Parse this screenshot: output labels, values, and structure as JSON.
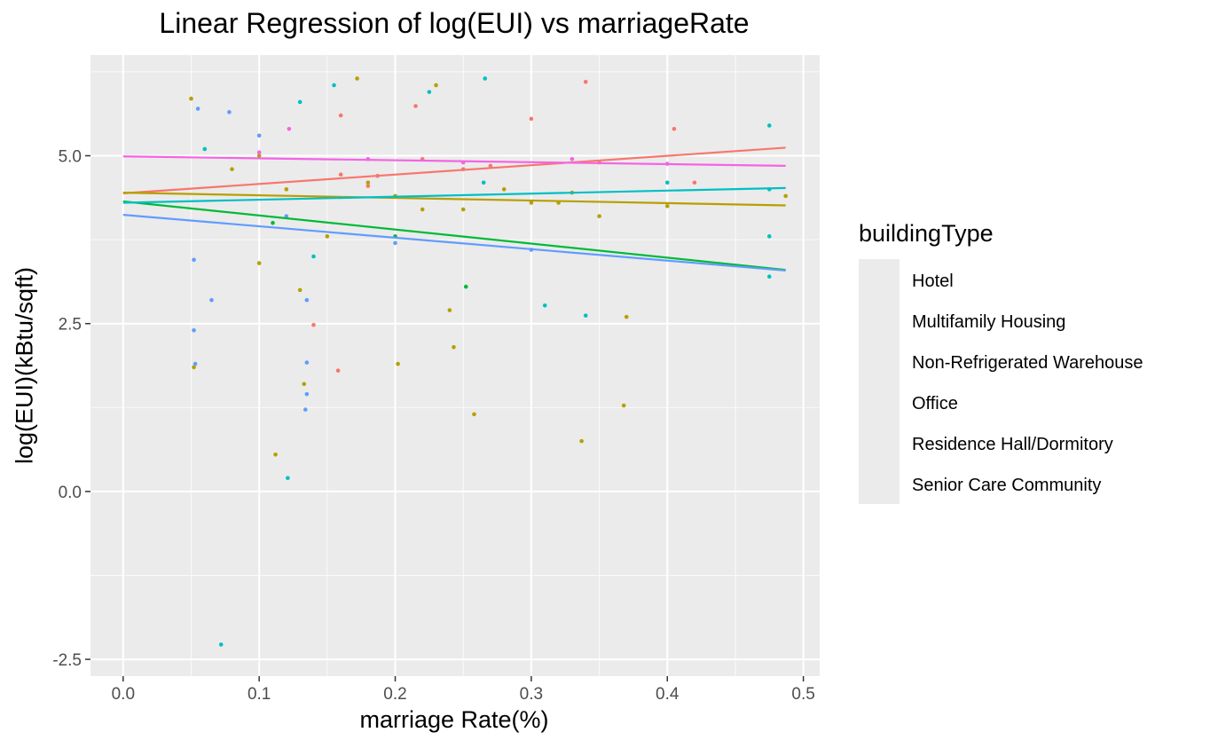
{
  "chart_data": {
    "type": "scatter",
    "title": "Linear Regression of log(EUI) vs marriageRate",
    "xlabel": "marriage Rate(%)",
    "ylabel": "log(EUI)(kBtu/sqft)",
    "xlim": [
      -0.024,
      0.512
    ],
    "ylim": [
      -2.75,
      6.5
    ],
    "x_ticks": [
      "0.0",
      "0.1",
      "0.2",
      "0.3",
      "0.4",
      "0.5"
    ],
    "y_ticks": [
      "-2.5",
      "0.0",
      "2.5",
      "5.0"
    ],
    "grid": true,
    "legend_title": "buildingType",
    "legend_position": "right",
    "series": [
      {
        "name": "Hotel",
        "color": "#F8766D",
        "fit": [
          [
            0.0,
            4.44
          ],
          [
            0.487,
            5.12
          ]
        ],
        "points": [
          [
            0.16,
            4.72
          ],
          [
            0.18,
            4.55
          ],
          [
            0.215,
            5.74
          ],
          [
            0.34,
            6.1
          ],
          [
            0.3,
            5.55
          ],
          [
            0.25,
            4.8
          ],
          [
            0.158,
            1.8
          ],
          [
            0.14,
            2.48
          ],
          [
            0.42,
            4.6
          ],
          [
            0.405,
            5.4
          ],
          [
            0.16,
            5.6
          ],
          [
            0.22,
            4.95
          ],
          [
            0.27,
            4.85
          ],
          [
            0.35,
            4.9
          ],
          [
            0.187,
            4.7
          ]
        ]
      },
      {
        "name": "Multifamily Housing",
        "color": "#B79F00",
        "fit": [
          [
            0.0,
            4.45
          ],
          [
            0.487,
            4.26
          ]
        ],
        "points": [
          [
            0.05,
            5.85
          ],
          [
            0.172,
            6.15
          ],
          [
            0.23,
            6.05
          ],
          [
            0.112,
            0.55
          ],
          [
            0.337,
            0.75
          ],
          [
            0.258,
            1.15
          ],
          [
            0.368,
            1.28
          ],
          [
            0.133,
            1.6
          ],
          [
            0.202,
            1.9
          ],
          [
            0.052,
            1.85
          ],
          [
            0.243,
            2.15
          ],
          [
            0.1,
            3.4
          ],
          [
            0.15,
            3.8
          ],
          [
            0.25,
            4.2
          ],
          [
            0.3,
            4.3
          ],
          [
            0.35,
            4.1
          ],
          [
            0.4,
            4.25
          ],
          [
            0.487,
            4.4
          ],
          [
            0.08,
            4.8
          ],
          [
            0.12,
            4.5
          ],
          [
            0.18,
            4.6
          ],
          [
            0.2,
            4.4
          ],
          [
            0.28,
            4.5
          ],
          [
            0.33,
            4.45
          ],
          [
            0.13,
            3.0
          ],
          [
            0.24,
            2.7
          ],
          [
            0.37,
            2.6
          ],
          [
            0.1,
            5.0
          ],
          [
            0.22,
            4.2
          ],
          [
            0.32,
            4.3
          ]
        ]
      },
      {
        "name": "Non-Refrigerated Warehouse",
        "color": "#00BA38",
        "fit": [
          [
            0.0,
            4.32
          ],
          [
            0.487,
            3.3
          ]
        ],
        "points": [
          [
            0.252,
            3.05
          ],
          [
            0.11,
            4.0
          ],
          [
            0.2,
            3.8
          ]
        ]
      },
      {
        "name": "Office",
        "color": "#00BFC4",
        "fit": [
          [
            0.0,
            4.3
          ],
          [
            0.487,
            4.52
          ]
        ],
        "points": [
          [
            0.121,
            0.2
          ],
          [
            0.072,
            -2.28
          ],
          [
            0.266,
            6.15
          ],
          [
            0.155,
            6.05
          ],
          [
            0.225,
            5.95
          ],
          [
            0.475,
            5.45
          ],
          [
            0.475,
            4.5
          ],
          [
            0.475,
            3.8
          ],
          [
            0.475,
            3.2
          ],
          [
            0.34,
            2.62
          ],
          [
            0.31,
            2.77
          ],
          [
            0.13,
            5.8
          ],
          [
            0.06,
            5.1
          ],
          [
            0.14,
            3.5
          ],
          [
            0.265,
            4.6
          ],
          [
            0.4,
            4.6
          ]
        ]
      },
      {
        "name": "Residence Hall/Dormitory",
        "color": "#619CFF",
        "fit": [
          [
            0.0,
            4.12
          ],
          [
            0.487,
            3.29
          ]
        ],
        "points": [
          [
            0.134,
            1.22
          ],
          [
            0.135,
            1.45
          ],
          [
            0.135,
            1.92
          ],
          [
            0.052,
            2.4
          ],
          [
            0.052,
            3.45
          ],
          [
            0.065,
            2.85
          ],
          [
            0.053,
            1.9
          ],
          [
            0.055,
            5.7
          ],
          [
            0.078,
            5.65
          ],
          [
            0.1,
            5.3
          ],
          [
            0.135,
            2.85
          ],
          [
            0.2,
            3.7
          ],
          [
            0.3,
            3.6
          ],
          [
            0.12,
            4.1
          ]
        ]
      },
      {
        "name": "Senior Care Community",
        "color": "#F564E3",
        "fit": [
          [
            0.0,
            4.99
          ],
          [
            0.487,
            4.85
          ]
        ],
        "points": [
          [
            0.122,
            5.4
          ],
          [
            0.18,
            4.95
          ],
          [
            0.25,
            4.9
          ],
          [
            0.33,
            4.95
          ],
          [
            0.4,
            4.88
          ],
          [
            0.1,
            5.05
          ]
        ]
      }
    ]
  }
}
